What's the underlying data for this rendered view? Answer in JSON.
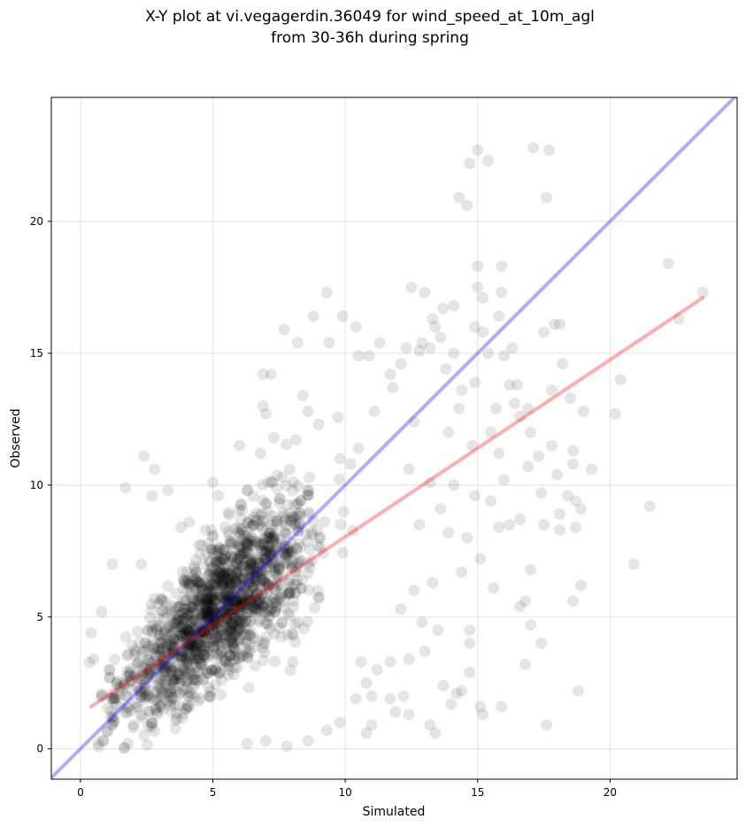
{
  "chart_data": {
    "type": "scatter",
    "title_lines": [
      "X-Y plot at vi.vegagerdin.36049 for wind_speed_at_10m_agl",
      "from 30-36h during spring"
    ],
    "xlabel": "Simulated",
    "ylabel": "Observed",
    "xlim": [
      -1.1,
      24.8
    ],
    "ylim": [
      -1.15,
      24.7
    ],
    "xticks": [
      0,
      5,
      10,
      15,
      20
    ],
    "yticks": [
      0,
      5,
      10,
      15,
      20
    ],
    "grid": true,
    "point_color": "#000000",
    "point_alpha": 0.1,
    "identity_line": {
      "color": "#0000ff",
      "alpha": 0.32,
      "from": [
        -1.1,
        -1.1
      ],
      "to": [
        24.8,
        24.8
      ]
    },
    "fit_line": {
      "color": "#ff0000",
      "alpha": 0.32,
      "from": [
        0.4,
        1.6
      ],
      "to": [
        23.5,
        17.1
      ]
    },
    "cluster": {
      "approx_points": 1700,
      "slope": 0.92,
      "intercept": 0.5
    },
    "series": [
      {
        "points": [
          [
            14.7,
            22.2
          ],
          [
            15.0,
            22.7
          ],
          [
            15.4,
            22.3
          ],
          [
            17.1,
            22.8
          ],
          [
            17.7,
            22.7
          ],
          [
            14.6,
            20.6
          ],
          [
            14.3,
            20.9
          ],
          [
            17.6,
            20.9
          ],
          [
            22.2,
            18.4
          ],
          [
            15.0,
            18.3
          ],
          [
            15.9,
            18.3
          ],
          [
            23.5,
            17.3
          ],
          [
            15.0,
            17.5
          ],
          [
            15.2,
            17.1
          ],
          [
            15.9,
            17.3
          ],
          [
            12.5,
            17.5
          ],
          [
            13.0,
            17.3
          ],
          [
            9.3,
            17.3
          ],
          [
            13.3,
            16.3
          ],
          [
            13.7,
            16.7
          ],
          [
            22.6,
            16.3
          ],
          [
            14.1,
            16.8
          ],
          [
            15.8,
            16.4
          ],
          [
            9.9,
            16.4
          ],
          [
            8.8,
            16.4
          ],
          [
            17.9,
            16.1
          ],
          [
            18.1,
            16.1
          ],
          [
            13.4,
            16.0
          ],
          [
            14.9,
            16.0
          ],
          [
            16.3,
            15.2
          ],
          [
            17.5,
            15.8
          ],
          [
            15.2,
            15.8
          ],
          [
            7.7,
            15.9
          ],
          [
            10.4,
            16.0
          ],
          [
            13.6,
            15.6
          ],
          [
            8.2,
            15.4
          ],
          [
            9.4,
            15.4
          ],
          [
            12.8,
            15.1
          ],
          [
            15.4,
            15.0
          ],
          [
            18.2,
            14.6
          ],
          [
            14.1,
            15.0
          ],
          [
            16.0,
            14.9
          ],
          [
            20.4,
            14.0
          ],
          [
            16.2,
            13.8
          ],
          [
            17.8,
            13.6
          ],
          [
            18.5,
            13.3
          ],
          [
            19.0,
            12.8
          ],
          [
            20.2,
            12.7
          ],
          [
            17.0,
            12.0
          ],
          [
            15.7,
            12.9
          ],
          [
            16.6,
            12.6
          ],
          [
            18.6,
            11.3
          ],
          [
            17.8,
            11.5
          ],
          [
            18.6,
            10.8
          ],
          [
            19.3,
            10.6
          ],
          [
            18.0,
            10.4
          ],
          [
            17.4,
            9.7
          ],
          [
            18.4,
            9.6
          ],
          [
            18.7,
            9.4
          ],
          [
            18.9,
            9.1
          ],
          [
            18.1,
            8.9
          ],
          [
            18.7,
            8.4
          ],
          [
            21.5,
            9.2
          ],
          [
            18.1,
            8.3
          ],
          [
            17.5,
            8.5
          ],
          [
            16.2,
            8.5
          ],
          [
            15.8,
            8.4
          ],
          [
            16.6,
            8.7
          ],
          [
            20.9,
            7.0
          ],
          [
            17.0,
            6.8
          ],
          [
            18.9,
            6.2
          ],
          [
            16.6,
            5.4
          ],
          [
            16.8,
            5.6
          ],
          [
            17.0,
            4.7
          ],
          [
            17.4,
            4.0
          ],
          [
            18.6,
            5.6
          ],
          [
            16.8,
            3.2
          ],
          [
            18.8,
            2.2
          ],
          [
            17.6,
            0.9
          ],
          [
            14.7,
            4.5
          ],
          [
            14.7,
            4.0
          ],
          [
            14.7,
            2.9
          ],
          [
            15.1,
            1.6
          ],
          [
            15.2,
            1.3
          ],
          [
            15.9,
            1.6
          ],
          [
            14.4,
            2.2
          ],
          [
            14.2,
            2.1
          ],
          [
            13.2,
            0.9
          ],
          [
            13.4,
            0.6
          ],
          [
            14.0,
            1.7
          ],
          [
            13.7,
            2.4
          ],
          [
            11.9,
            1.4
          ],
          [
            12.4,
            1.3
          ],
          [
            11.0,
            0.9
          ],
          [
            10.8,
            0.6
          ],
          [
            11.0,
            2.0
          ],
          [
            11.7,
            1.9
          ],
          [
            12.2,
            2.0
          ],
          [
            10.6,
            3.3
          ],
          [
            1.2,
            7.0
          ],
          [
            1.7,
            9.9
          ],
          [
            2.4,
            11.1
          ],
          [
            2.7,
            9.6
          ],
          [
            2.8,
            10.6
          ],
          [
            3.3,
            9.8
          ],
          [
            0.4,
            4.4
          ],
          [
            0.5,
            3.4
          ],
          [
            0.8,
            5.2
          ],
          [
            2.3,
            7.0
          ],
          [
            3.8,
            8.4
          ],
          [
            4.1,
            8.6
          ],
          [
            5.0,
            10.1
          ],
          [
            5.2,
            9.6
          ],
          [
            6.0,
            11.5
          ],
          [
            6.8,
            11.2
          ],
          [
            7.3,
            11.8
          ],
          [
            7.0,
            12.7
          ],
          [
            6.9,
            14.2
          ],
          [
            7.2,
            14.2
          ],
          [
            6.9,
            13.0
          ],
          [
            8.6,
            12.8
          ],
          [
            8.4,
            13.4
          ],
          [
            9.0,
            12.3
          ],
          [
            9.8,
            11.0
          ],
          [
            11.8,
            13.7
          ],
          [
            12.6,
            12.4
          ],
          [
            11.1,
            12.8
          ],
          [
            10.5,
            14.9
          ],
          [
            10.9,
            14.9
          ],
          [
            11.7,
            14.2
          ],
          [
            12.1,
            14.6
          ],
          [
            11.3,
            15.4
          ],
          [
            12.3,
            15.2
          ],
          [
            12.9,
            15.4
          ],
          [
            13.2,
            15.2
          ],
          [
            13.8,
            14.4
          ],
          [
            14.4,
            13.6
          ],
          [
            14.9,
            13.9
          ],
          [
            14.3,
            12.9
          ],
          [
            13.9,
            12.0
          ],
          [
            14.8,
            11.5
          ],
          [
            15.5,
            12.0
          ],
          [
            15.8,
            11.2
          ],
          [
            16.0,
            10.2
          ],
          [
            16.9,
            10.7
          ],
          [
            17.3,
            11.1
          ],
          [
            16.4,
            13.1
          ],
          [
            16.9,
            12.9
          ],
          [
            16.5,
            13.8
          ],
          [
            10.2,
            10.8
          ],
          [
            10.5,
            11.4
          ],
          [
            12.4,
            10.6
          ],
          [
            13.2,
            10.1
          ],
          [
            14.1,
            10.0
          ],
          [
            15.5,
            9.4
          ],
          [
            14.9,
            9.6
          ],
          [
            13.6,
            9.1
          ],
          [
            12.8,
            8.5
          ],
          [
            13.9,
            8.2
          ],
          [
            14.6,
            8.0
          ],
          [
            15.1,
            7.2
          ],
          [
            15.6,
            6.1
          ],
          [
            14.4,
            6.7
          ],
          [
            13.3,
            6.3
          ],
          [
            12.6,
            6.0
          ],
          [
            12.1,
            5.3
          ],
          [
            12.9,
            4.8
          ],
          [
            13.5,
            4.5
          ],
          [
            13.0,
            3.7
          ],
          [
            12.4,
            3.4
          ],
          [
            11.7,
            3.3
          ],
          [
            11.2,
            3.0
          ],
          [
            10.8,
            2.5
          ],
          [
            10.4,
            1.9
          ],
          [
            9.8,
            1.0
          ],
          [
            9.3,
            0.7
          ],
          [
            8.6,
            0.3
          ],
          [
            7.8,
            0.1
          ],
          [
            7.0,
            0.3
          ],
          [
            6.3,
            0.2
          ]
        ]
      }
    ]
  }
}
